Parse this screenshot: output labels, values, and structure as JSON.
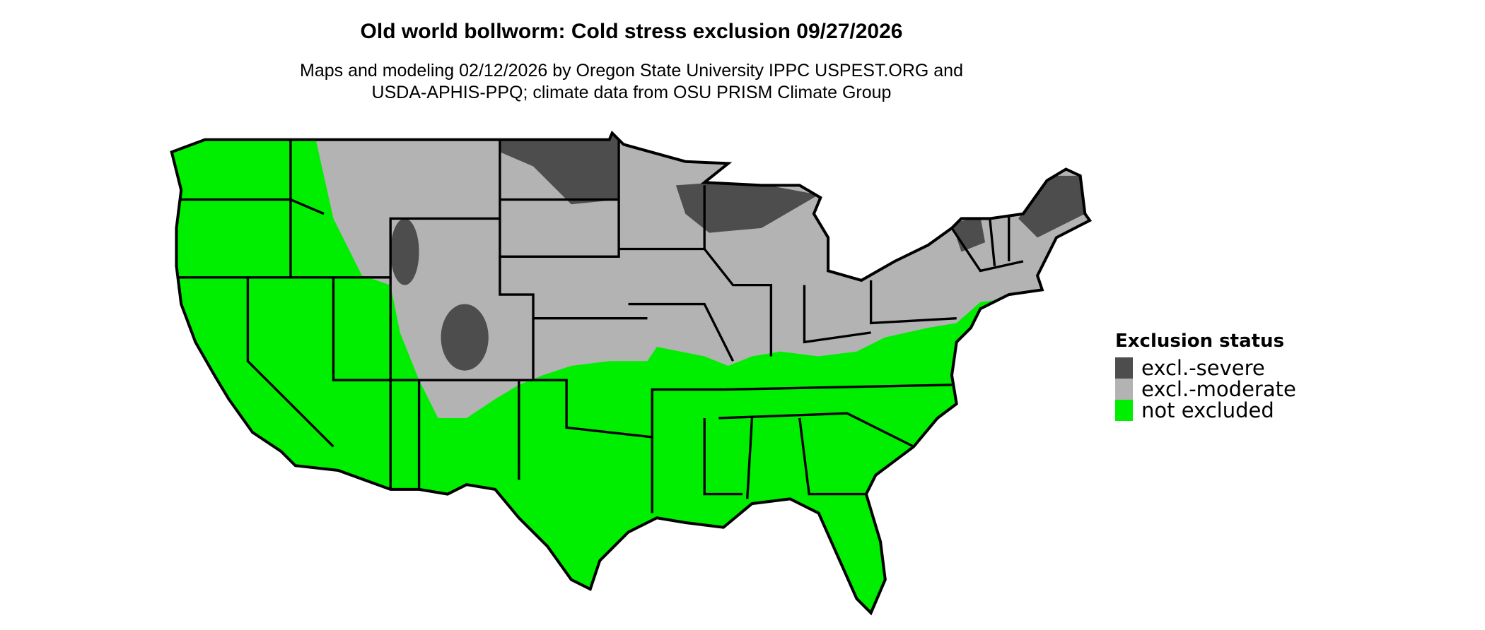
{
  "title": "Old world bollworm: Cold stress exclusion 09/27/2026",
  "subtitle_lines": [
    "Maps and modeling 02/12/2026 by Oregon State University IPPC USPEST.ORG and",
    "USDA-APHIS-PPQ; climate data from OSU PRISM Climate Group"
  ],
  "map": {
    "region": "Contiguous United States",
    "background_color": "#ffffff",
    "border_color": "#000000"
  },
  "legend": {
    "title": "Exclusion status",
    "items": [
      {
        "label": "excl.-severe",
        "color": "#4d4d4d"
      },
      {
        "label": "excl.-moderate",
        "color": "#b3b3b3"
      },
      {
        "label": "not excluded",
        "color": "#00ee00"
      }
    ]
  }
}
